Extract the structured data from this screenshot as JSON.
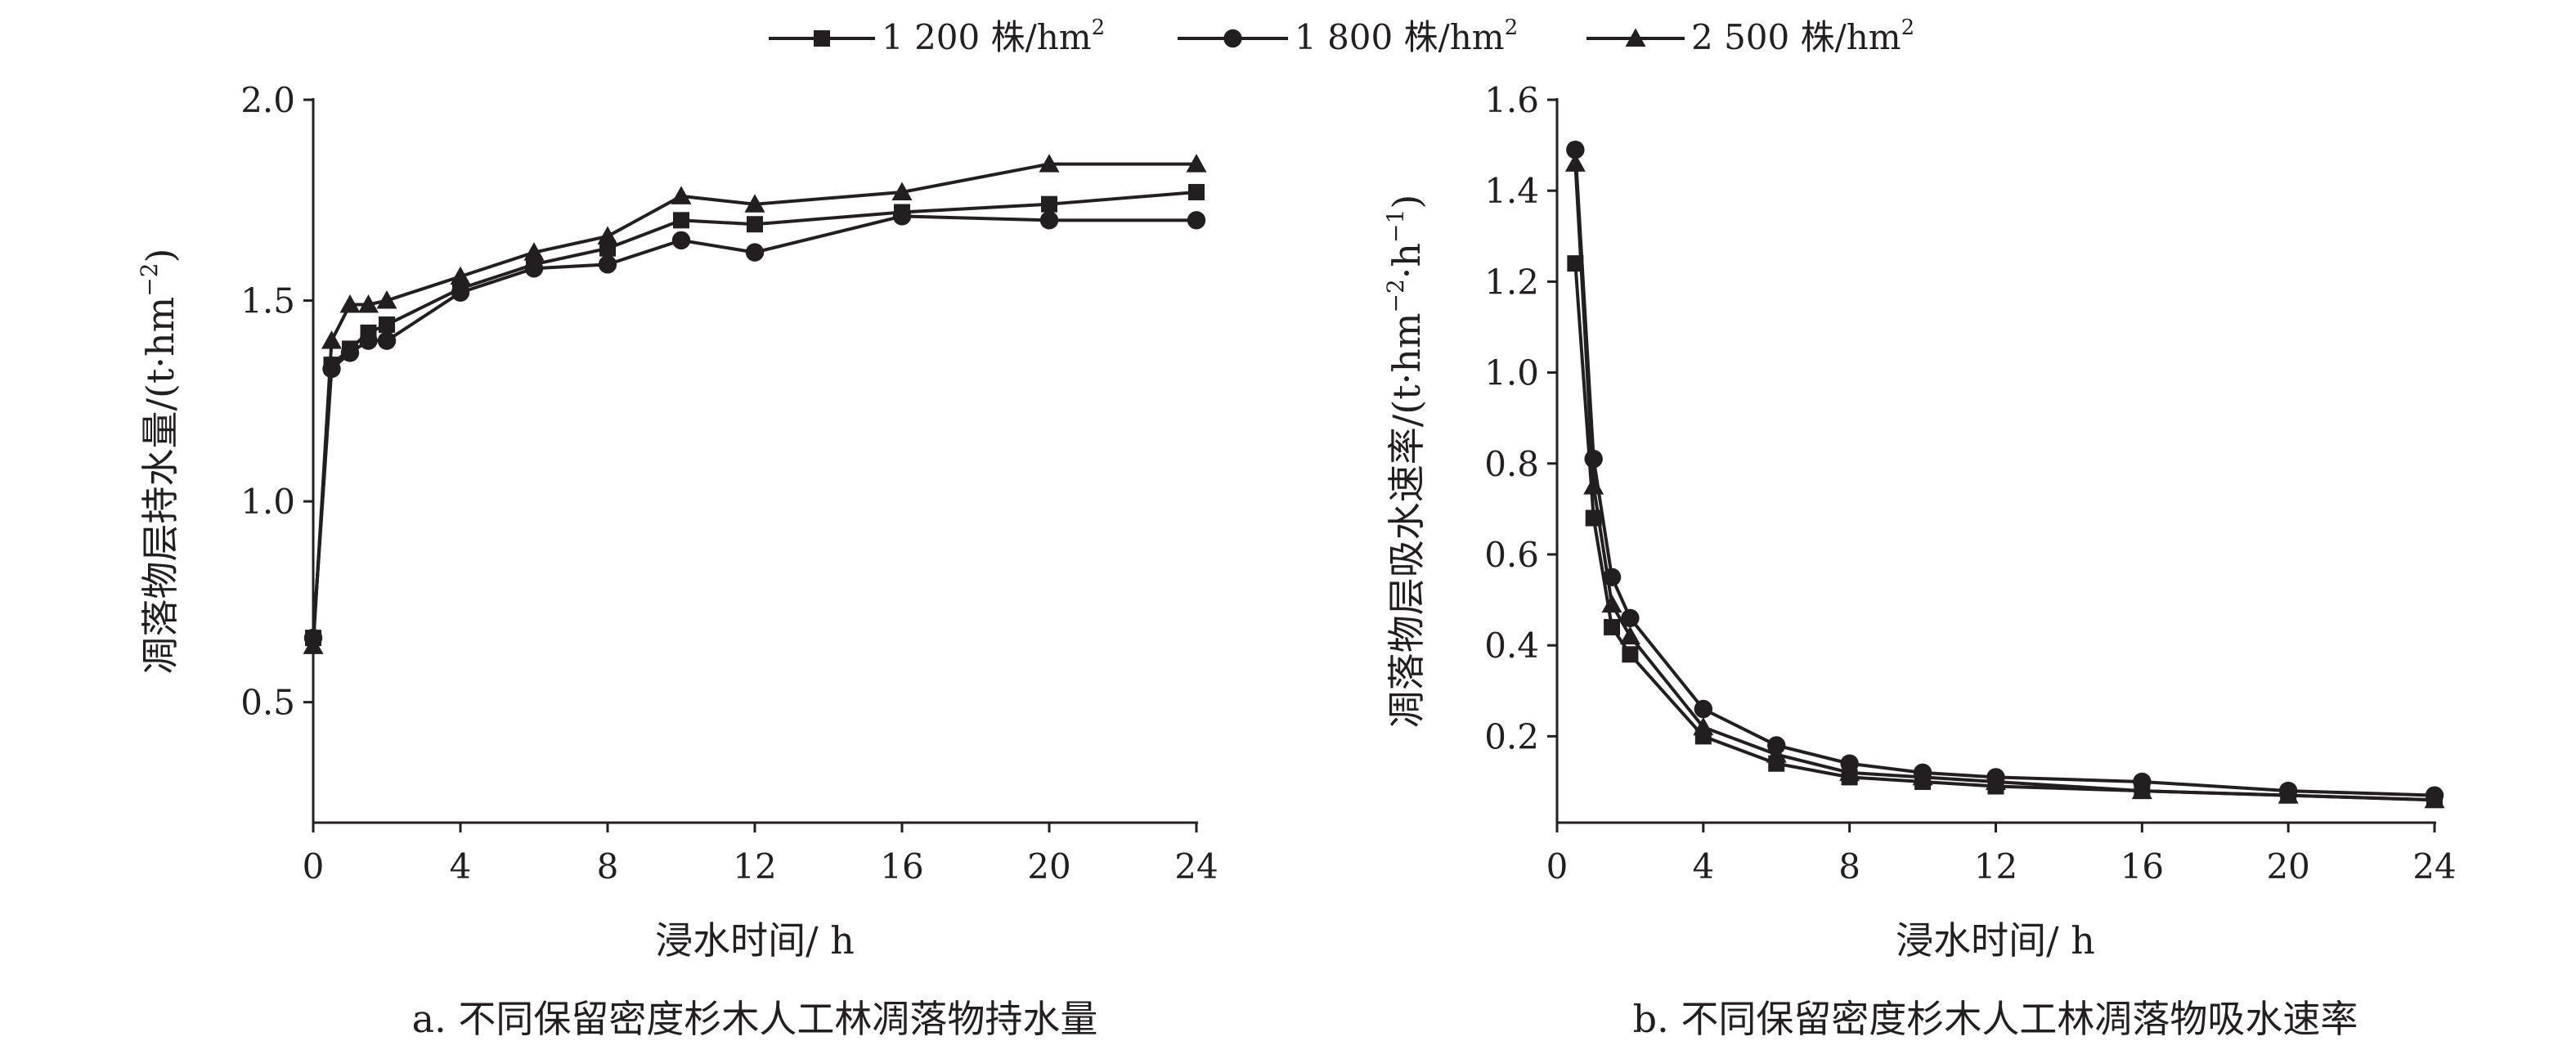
{
  "legend": [
    {
      "label": "1 200 株/hm",
      "sup": "2",
      "marker": "square"
    },
    {
      "label": "1 800 株/hm",
      "sup": "2",
      "marker": "circle"
    },
    {
      "label": "2 500 株/hm",
      "sup": "2",
      "marker": "triangle"
    }
  ],
  "chart_data": [
    {
      "type": "line",
      "caption": "a. 不同保留密度杉木人工林凋落物持水量",
      "xlabel": "浸水时间/ h",
      "ylabel": "凋落物层持水量/(t·hm",
      "ylabel_sup": "−2",
      "ylabel_end": ")",
      "xlim": [
        0,
        24
      ],
      "ylim": [
        0.2,
        2.0
      ],
      "xticks": [
        0,
        4,
        8,
        12,
        16,
        20,
        24
      ],
      "yticks": [
        0.5,
        1.0,
        1.5,
        2.0
      ],
      "ytick_labels": [
        "0.5",
        "1.0",
        "1.5",
        "2.0"
      ],
      "x": [
        0,
        0.5,
        1,
        1.5,
        2,
        4,
        6,
        8,
        10,
        12,
        16,
        20,
        24
      ],
      "series": [
        {
          "name": "1 200 株/hm2",
          "marker": "square",
          "values": [
            0.66,
            1.34,
            1.38,
            1.42,
            1.44,
            1.53,
            1.59,
            1.63,
            1.7,
            1.69,
            1.72,
            1.74,
            1.77
          ]
        },
        {
          "name": "1 800 株/hm2",
          "marker": "circle",
          "values": [
            0.66,
            1.33,
            1.37,
            1.4,
            1.4,
            1.52,
            1.58,
            1.59,
            1.65,
            1.62,
            1.71,
            1.7,
            1.7
          ]
        },
        {
          "name": "2 500 株/hm2",
          "marker": "triangle",
          "values": [
            0.64,
            1.4,
            1.49,
            1.49,
            1.5,
            1.56,
            1.62,
            1.66,
            1.76,
            1.74,
            1.77,
            1.84,
            1.84
          ]
        }
      ]
    },
    {
      "type": "line",
      "caption": "b. 不同保留密度杉木人工林凋落物吸水速率",
      "xlabel": "浸水时间/ h",
      "ylabel": "凋落物层吸水速率/(t·hm",
      "ylabel_sup": "−2",
      "ylabel_mid": "·h",
      "ylabel_sup2": "−1",
      "ylabel_end": ")",
      "xlim": [
        0,
        24
      ],
      "ylim": [
        0.01,
        1.6
      ],
      "xticks": [
        0,
        4,
        8,
        12,
        16,
        20,
        24
      ],
      "yticks": [
        0.2,
        0.4,
        0.6,
        0.8,
        1.0,
        1.2,
        1.4,
        1.6
      ],
      "ytick_labels": [
        "0.2",
        "0.4",
        "0.6",
        "0.8",
        "1.0",
        "1.2",
        "1.4",
        "1.6"
      ],
      "x": [
        0.5,
        1,
        1.5,
        2,
        4,
        6,
        8,
        10,
        12,
        16,
        20,
        24
      ],
      "series": [
        {
          "name": "1 200 株/hm2",
          "marker": "square",
          "values": [
            1.24,
            0.68,
            0.44,
            0.38,
            0.2,
            0.14,
            0.11,
            0.1,
            0.09,
            0.08,
            0.07,
            0.06
          ]
        },
        {
          "name": "1 800 株/hm2",
          "marker": "circle",
          "values": [
            1.49,
            0.81,
            0.55,
            0.46,
            0.26,
            0.18,
            0.14,
            0.12,
            0.11,
            0.1,
            0.08,
            0.07
          ]
        },
        {
          "name": "2 500 株/hm2",
          "marker": "triangle",
          "values": [
            1.46,
            0.75,
            0.49,
            0.42,
            0.22,
            0.16,
            0.12,
            0.11,
            0.1,
            0.08,
            0.07,
            0.06
          ]
        }
      ]
    }
  ]
}
